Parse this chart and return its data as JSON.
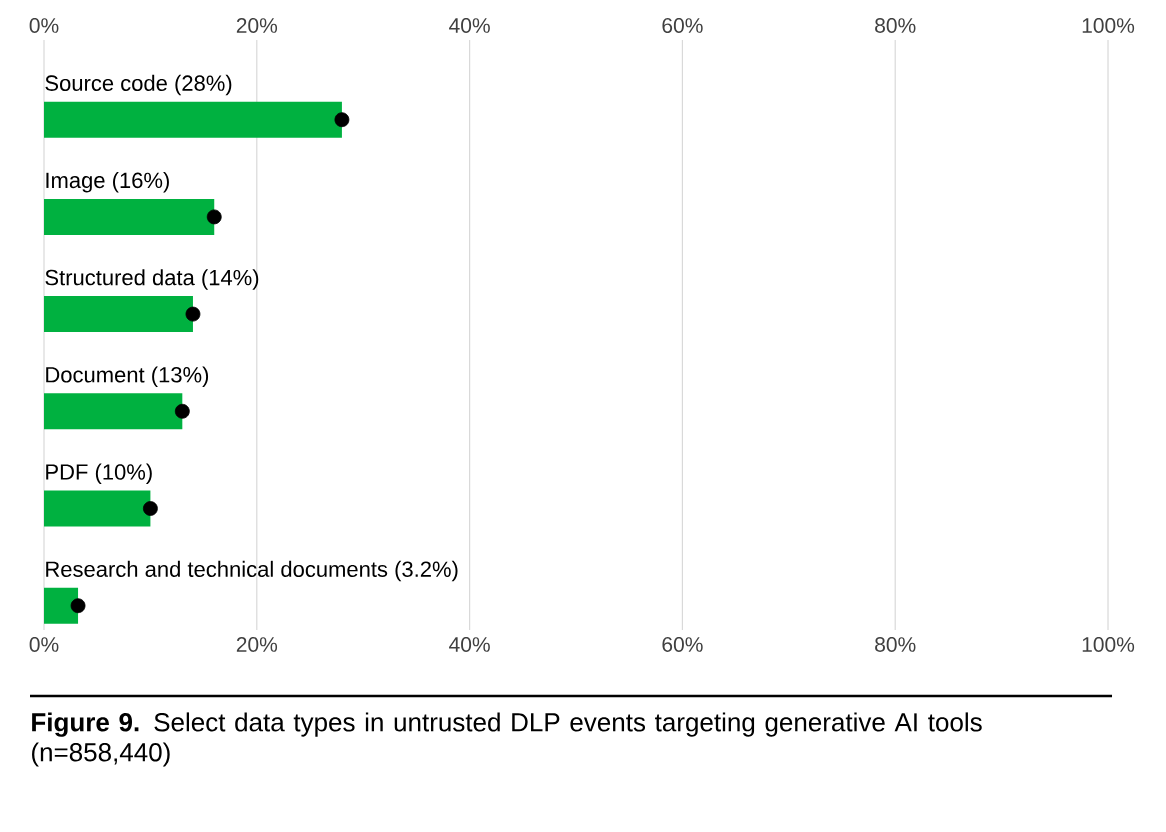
{
  "chart_data": {
    "type": "bar",
    "orientation": "horizontal",
    "title": "**Figure 9.** Select data types in untrusted DLP events targeting generative AI tools (n=858,440)",
    "categories": [
      "Source code (28%)",
      "Image (16%)",
      "Structured data (14%)",
      "Document (13%)",
      "PDF (10%)",
      "Research and technical documents (3.2%)"
    ],
    "series": [
      {
        "type": "bar",
        "color": "#00b140",
        "values": [
          28,
          16,
          14,
          13,
          10,
          3.2
        ]
      },
      {
        "type": "scatter",
        "color": "#000000",
        "marker": "circle",
        "values": [
          28,
          16,
          14,
          13,
          10,
          3.2
        ]
      }
    ],
    "grid": "x",
    "xlim": [
      0,
      100
    ],
    "xticks": [
      {
        "value": 0,
        "label": "0%"
      },
      {
        "value": 20,
        "label": "20%"
      },
      {
        "value": 40,
        "label": "40%"
      },
      {
        "value": 60,
        "label": "60%"
      },
      {
        "value": 80,
        "label": "80%"
      },
      {
        "value": 100,
        "label": "100%"
      }
    ],
    "x2lim": [
      0,
      100
    ],
    "x2ticks": [
      {
        "value": 0,
        "label": "0%"
      },
      {
        "value": 20,
        "label": "20%"
      },
      {
        "value": 40,
        "label": "40%"
      },
      {
        "value": 60,
        "label": "60%"
      },
      {
        "value": 80,
        "label": "80%"
      },
      {
        "value": 100,
        "label": "100%"
      }
    ]
  }
}
